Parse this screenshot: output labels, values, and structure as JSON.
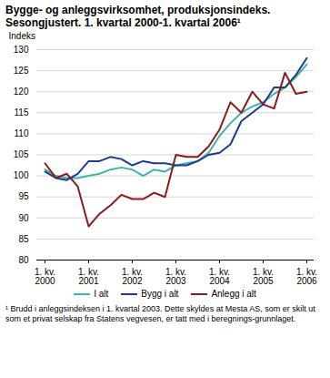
{
  "chart_data": {
    "type": "line",
    "title": "Bygge- og anleggsvirksomhet, produksjonsindeks. Sesongjustert. 1. kvartal 2000-1. kvartal 2006¹",
    "y_label": "Indeks",
    "footnote": "¹ Brudd i anleggsindeksen i 1. kvartal 2003. Dette skyldes at Mesta AS, som er skilt ut som et privat selskap fra Statens vegvesen, er tatt med i beregnings-grunnlaget.",
    "categories": [
      "1. kv.\n2000",
      null,
      null,
      null,
      "1. kv.\n2001",
      null,
      null,
      null,
      "1. kv.\n2002",
      null,
      null,
      null,
      "1. kv.\n2003",
      null,
      null,
      null,
      "1. kv.\n2004",
      null,
      null,
      null,
      "1. kv.\n2005",
      null,
      null,
      null,
      "1. kv.\n2006"
    ],
    "series": [
      {
        "name": "I alt",
        "color": "#3fb4a8",
        "values": [
          101.5,
          100,
          99.5,
          99.5,
          100,
          100.5,
          101.5,
          102,
          101.5,
          100,
          101.5,
          101,
          102.5,
          103,
          103.5,
          105.5,
          109.5,
          112.5,
          115,
          116.5,
          117.5,
          119.5,
          121,
          123.5,
          126.5
        ]
      },
      {
        "name": "Bygg i alt",
        "color": "#1a3d8f",
        "values": [
          101,
          99.5,
          99,
          100.5,
          103.5,
          103.5,
          104.5,
          104,
          102.5,
          103.5,
          103,
          103,
          102.5,
          102.5,
          103.5,
          105,
          105.5,
          107.5,
          113,
          115,
          117,
          121,
          121,
          124,
          128
        ]
      },
      {
        "name": "Anlegg i alt",
        "color": "#8b1a1a",
        "values": [
          103,
          99.5,
          100.5,
          97.5,
          88,
          91,
          93,
          95.5,
          94.5,
          94.5,
          96,
          95,
          105,
          104.5,
          104.5,
          107,
          111,
          117.5,
          115,
          120,
          117,
          116,
          124.5,
          119.5,
          120
        ]
      }
    ],
    "ylim": [
      80,
      130
    ],
    "yticks": [
      80,
      85,
      90,
      95,
      100,
      105,
      110,
      115,
      120,
      125,
      130
    ],
    "grid": true,
    "legend": "bottom"
  }
}
